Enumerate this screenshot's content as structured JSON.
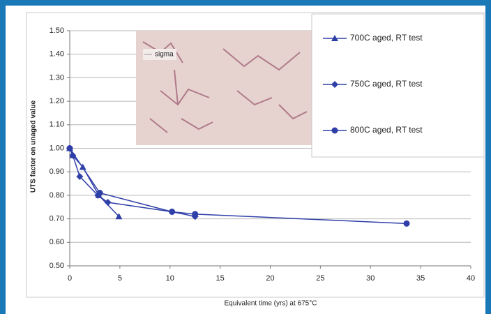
{
  "chart_data": {
    "type": "line",
    "y_label": "UTS factor on unaged value",
    "x_label": "Equivalent time (yrs) at 675°C",
    "inset_label": "sigma",
    "xlim": [
      0,
      40
    ],
    "xticks": [
      0,
      5,
      10,
      15,
      20,
      25,
      30,
      35,
      40
    ],
    "ylim": [
      0.5,
      1.5
    ],
    "yticks": [
      {
        "value": 0.5,
        "label": "0.50"
      },
      {
        "value": 0.6,
        "label": "0.60"
      },
      {
        "value": 0.7,
        "label": "0.70"
      },
      {
        "value": 0.8,
        "label": "0.80"
      },
      {
        "value": 0.9,
        "label": "0.90"
      },
      {
        "value": 1.0,
        "label": "1.00"
      },
      {
        "value": 1.1,
        "label": "1.10"
      },
      {
        "value": 1.2,
        "label": "1.20"
      },
      {
        "value": 1.3,
        "label": "1.30"
      },
      {
        "value": 1.4,
        "label": "1.40"
      },
      {
        "value": 1.5,
        "label": "1.50"
      }
    ],
    "grid": true,
    "series": [
      {
        "name": "700C aged, RT test",
        "color": "#2f3fa8",
        "marker": "triangle",
        "x": [
          0,
          0.3,
          1.3,
          2.9,
          4.9
        ],
        "values": [
          1.0,
          0.97,
          0.92,
          0.8,
          0.71
        ]
      },
      {
        "name": "750C aged, RT test",
        "color": "#2f3fa8",
        "marker": "diamond",
        "x": [
          0,
          0.3,
          1.0,
          2.8,
          3.8,
          10.2,
          12.5
        ],
        "values": [
          1.0,
          0.97,
          0.88,
          0.8,
          0.77,
          0.73,
          0.71
        ]
      },
      {
        "name": "800C aged, RT test",
        "color": "#2f3fa8",
        "marker": "circle",
        "x": [
          0,
          3.0,
          10.2,
          12.5,
          33.6
        ],
        "values": [
          1.0,
          0.81,
          0.73,
          0.72,
          0.68
        ]
      }
    ]
  }
}
